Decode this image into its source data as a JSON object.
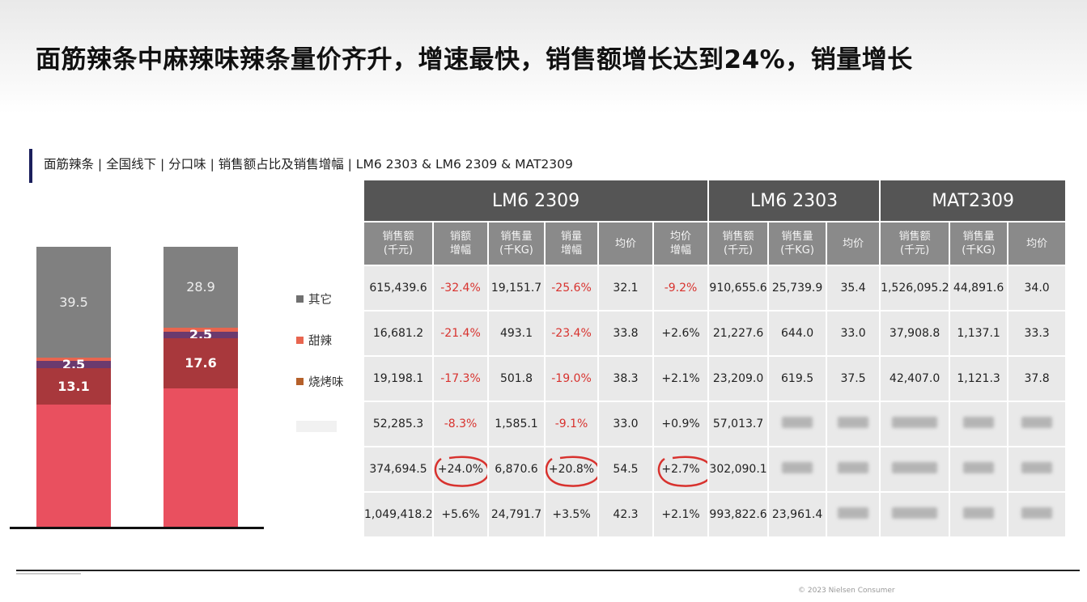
{
  "title": "面筋辣条中麻辣味辣条量价齐升，增速最快，销售额增长达到24%，销量增长",
  "subtitle": "面筋辣条 | 全国线下 | 分口味 | 销售额占比及销售增幅 | LM6 2303 & LM6 2309 & MAT2309",
  "colors": {
    "other": "#808080",
    "sweet_spicy": "#e8654f",
    "bbq": "#b5602a",
    "purple": "#6b3a6e",
    "dark_red": "#a8383c",
    "main_red": "#e9505f",
    "header_dark": "#555555",
    "header_mid": "#8a8a8a",
    "cell_bg": "#e9e9e9",
    "neg_text": "#d8322e",
    "circle": "#d8322e"
  },
  "legend": [
    {
      "label": "其它",
      "color": "#707070"
    },
    {
      "label": "甜辣",
      "color": "#e8654f"
    },
    {
      "label": "烧烤味",
      "color": "#b5602a"
    }
  ],
  "chart_data": {
    "type": "bar",
    "stacked": true,
    "bars": [
      {
        "segments": [
          {
            "value": 39.5,
            "label": "39.5",
            "color": "#808080"
          },
          {
            "value": 1.2,
            "label": "",
            "color": "#e8654f"
          },
          {
            "value": 2.5,
            "label": "2.5",
            "color": "#6b3a6e"
          },
          {
            "value": 13.1,
            "label": "13.1",
            "color": "#a8383c"
          },
          {
            "value": 43.7,
            "label": "",
            "color": "#e9505f"
          }
        ]
      },
      {
        "segments": [
          {
            "value": 28.9,
            "label": "28.9",
            "color": "#808080"
          },
          {
            "value": 1.3,
            "label": "",
            "color": "#e8654f"
          },
          {
            "value": 2.5,
            "label": "2.5",
            "color": "#6b3a6e"
          },
          {
            "value": 17.6,
            "label": "17.6",
            "color": "#a8383c"
          },
          {
            "value": 49.7,
            "label": "",
            "color": "#e9505f"
          }
        ]
      }
    ]
  },
  "table": {
    "groups": [
      "LM6 2309",
      "LM6 2303",
      "MAT2309"
    ],
    "headers": [
      [
        "销售额",
        "(千元)"
      ],
      [
        "销额",
        "增幅"
      ],
      [
        "销售量",
        "(千KG)"
      ],
      [
        "销量",
        "增幅"
      ],
      [
        "均价"
      ],
      [
        "均价",
        "增幅"
      ],
      [
        "销售额",
        "(千元)"
      ],
      [
        "销售量",
        "(千KG)"
      ],
      [
        "均价"
      ],
      [
        "销售额",
        "(千元)"
      ],
      [
        "销售量",
        "(千KG)"
      ],
      [
        "均价"
      ]
    ],
    "rows": [
      [
        "615,439.6",
        "-32.4%",
        "19,151.7",
        "-25.6%",
        "32.1",
        "-9.2%",
        "910,655.6",
        "25,739.9",
        "35.4",
        "1,526,095.2",
        "44,891.6",
        "34.0"
      ],
      [
        "16,681.2",
        "-21.4%",
        "493.1",
        "-23.4%",
        "33.8",
        "+2.6%",
        "21,227.6",
        "644.0",
        "33.0",
        "37,908.8",
        "1,137.1",
        "33.3"
      ],
      [
        "19,198.1",
        "-17.3%",
        "501.8",
        "-19.0%",
        "38.3",
        "+2.1%",
        "23,209.0",
        "619.5",
        "37.5",
        "42,407.0",
        "1,121.3",
        "37.8"
      ],
      [
        "52,285.3",
        "-8.3%",
        "1,585.1",
        "-9.1%",
        "33.0",
        "+0.9%",
        "57,013.7",
        "",
        "",
        "",
        "",
        ""
      ],
      [
        "374,694.5",
        "+24.0%",
        "6,870.6",
        "+20.8%",
        "54.5",
        "+2.7%",
        "302,090.1",
        "",
        "",
        "",
        "",
        ""
      ],
      [
        "1,049,418.2",
        "+5.6%",
        "24,791.7",
        "+3.5%",
        "42.3",
        "+2.1%",
        "993,822.6",
        "23,961.4",
        "",
        "",
        "",
        ""
      ]
    ]
  },
  "copyright": "© 2023 Nielsen Consumer"
}
